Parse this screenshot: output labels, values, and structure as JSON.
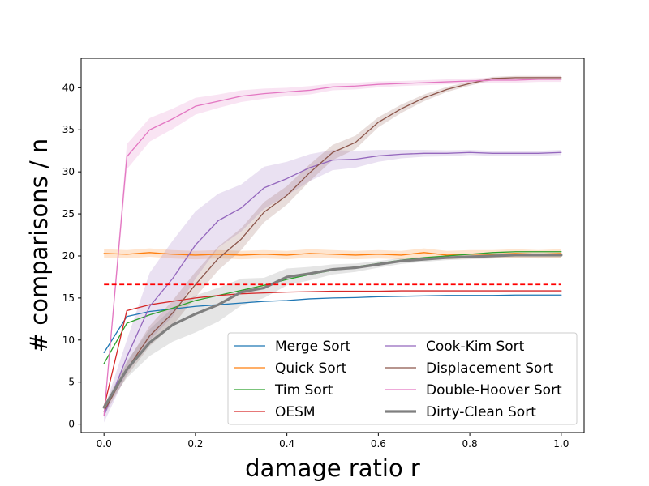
{
  "chart_data": {
    "type": "line",
    "title": "",
    "xlabel": "damage ratio r",
    "ylabel": "# comparisons / n",
    "xlim": [
      -0.05,
      1.05
    ],
    "ylim": [
      -1,
      43.5
    ],
    "xticks": [
      "0.0",
      "0.2",
      "0.4",
      "0.6",
      "0.8",
      "1.0"
    ],
    "yticks": [
      "0",
      "5",
      "10",
      "15",
      "20",
      "25",
      "30",
      "35",
      "40"
    ],
    "grid": false,
    "legend": "lower-right",
    "x": [
      0,
      0.05,
      0.1,
      0.15,
      0.2,
      0.25,
      0.3,
      0.35,
      0.4,
      0.45,
      0.5,
      0.55,
      0.6,
      0.65,
      0.7,
      0.75,
      0.8,
      0.85,
      0.9,
      0.95,
      1.0
    ],
    "series": [
      {
        "name": "Merge Sort",
        "color": "#1f77b4",
        "width": 1.3,
        "values": [
          8.5,
          12.8,
          13.4,
          13.7,
          14.0,
          14.2,
          14.4,
          14.6,
          14.7,
          14.9,
          15.0,
          15.05,
          15.15,
          15.2,
          15.25,
          15.3,
          15.3,
          15.3,
          15.35,
          15.35,
          15.35
        ]
      },
      {
        "name": "Quick Sort",
        "color": "#ff7f0e",
        "width": 1.3,
        "values": [
          20.3,
          20.2,
          20.4,
          20.2,
          20.1,
          20.2,
          20.1,
          20.2,
          20.1,
          20.3,
          20.2,
          20.1,
          20.2,
          20.1,
          20.4,
          20.1,
          20.2,
          20.2,
          20.3,
          20.2,
          20.3
        ],
        "band": 0.5
      },
      {
        "name": "Tim Sort",
        "color": "#2ca02c",
        "width": 1.3,
        "values": [
          7.2,
          12.0,
          13.0,
          13.8,
          14.7,
          15.3,
          15.9,
          16.5,
          17.2,
          17.8,
          18.3,
          18.7,
          19.1,
          19.5,
          19.8,
          20.0,
          20.2,
          20.4,
          20.5,
          20.5,
          20.5
        ]
      },
      {
        "name": "OESM",
        "color": "#d62728",
        "width": 1.3,
        "values": [
          2.0,
          13.5,
          14.2,
          14.6,
          15.0,
          15.3,
          15.5,
          15.6,
          15.7,
          15.75,
          15.8,
          15.8,
          15.8,
          15.85,
          15.85,
          15.85,
          15.85,
          15.85,
          15.85,
          15.85,
          15.85
        ]
      },
      {
        "name": "Cook-Kim Sort",
        "color": "#9467bd",
        "width": 1.3,
        "values": [
          1.0,
          8.0,
          14.0,
          17.3,
          21.3,
          24.2,
          25.7,
          28.1,
          29.2,
          30.5,
          31.4,
          31.5,
          31.9,
          32.1,
          32.2,
          32.2,
          32.3,
          32.2,
          32.2,
          32.2,
          32.3
        ],
        "band": [
          0.8,
          2.0,
          4.0,
          4.5,
          4.0,
          3.2,
          2.8,
          2.5,
          2.0,
          1.6,
          1.2,
          1.0,
          0.7,
          0.5,
          0.4,
          0.35,
          0.3,
          0.3,
          0.3,
          0.3,
          0.3
        ]
      },
      {
        "name": "Displacement Sort",
        "color": "#8c564b",
        "width": 1.3,
        "values": [
          1.5,
          6.5,
          10.5,
          13.2,
          16.6,
          19.7,
          22.0,
          25.2,
          27.2,
          29.9,
          32.3,
          33.5,
          35.9,
          37.5,
          38.8,
          39.8,
          40.5,
          41.1,
          41.2,
          41.2,
          41.2
        ],
        "band": [
          0.5,
          0.8,
          1.2,
          1.5,
          1.5,
          1.4,
          1.3,
          1.2,
          1.1,
          1.0,
          0.9,
          0.8,
          0.6,
          0.5,
          0.4,
          0.3,
          0.25,
          0.2,
          0.2,
          0.2,
          0.2
        ]
      },
      {
        "name": "Double-Hoover Sort",
        "color": "#e377c2",
        "width": 1.3,
        "values": [
          1.0,
          31.8,
          35.0,
          36.3,
          37.8,
          38.4,
          39.0,
          39.3,
          39.5,
          39.7,
          40.1,
          40.2,
          40.4,
          40.5,
          40.6,
          40.7,
          40.8,
          40.9,
          40.9,
          41.0,
          41.0
        ],
        "band": [
          0.3,
          1.5,
          1.4,
          1.2,
          1.0,
          0.8,
          0.7,
          0.6,
          0.5,
          0.5,
          0.4,
          0.4,
          0.35,
          0.3,
          0.3,
          0.3,
          0.3,
          0.3,
          0.3,
          0.3,
          0.3
        ]
      },
      {
        "name": "Dirty-Clean Sort",
        "color": "#7f7f7f",
        "width": 3.2,
        "values": [
          2.0,
          6.5,
          9.7,
          11.8,
          13.1,
          14.2,
          15.7,
          16.2,
          17.5,
          17.9,
          18.4,
          18.6,
          19.0,
          19.4,
          19.6,
          19.8,
          19.9,
          20.0,
          20.1,
          20.1,
          20.1
        ],
        "band": [
          0.3,
          1.0,
          1.6,
          2.0,
          2.2,
          2.0,
          1.6,
          1.2,
          1.0,
          0.8,
          0.6,
          0.5,
          0.4,
          0.35,
          0.3,
          0.3,
          0.3,
          0.3,
          0.3,
          0.3,
          0.3
        ]
      }
    ],
    "reference_line": {
      "y": 16.6,
      "color": "#ff0000",
      "style": "dashed"
    }
  }
}
